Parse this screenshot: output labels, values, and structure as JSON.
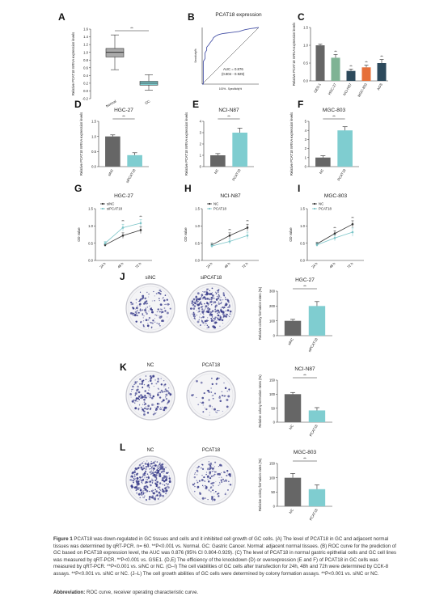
{
  "figure": {
    "caption_label": "Figure 1",
    "caption_text": "PCAT18 was down-regulated in GC tissues and cells and it inhibited cell growth of GC cells. (A) The level of PCAT18 in GC and adjacent normal tissues was determined by qRT-PCR. n= 60. **P<0.001 vs. Normal. GC: Gastric Cancer. Normal: adjacent normal tissues. (B) ROC curve for the prediction of GC based on PCAT18 expression level, the AUC was 0.876 (95% CI 0.804-0.929). (C) The level of PCAT18 in normal gastric epithelial cells and GC cell lines was measured by qRT-PCR. **P<0.001 vs. GSE1. (D,E) The efficiency of the knockdown (D) or overexpression (E and F) of PCAT18 in GC cells was measured by qRT-PCR. **P<0.001 vs. siNC or NC. (G–I) The cell viabilities of GC cells after transfection for 24h, 48h and 72h were determined by CCK-8 assays. **P<0.001 vs. siNC or NC. (J–L) The cell growth abilities of GC cells were determined by colony formation assays. **P<0.001 vs. siNC or NC.",
    "abbreviation_label": "Abbreviation:",
    "abbreviation_text": "ROC curve, receiver operating characteristic curve."
  },
  "colors": {
    "normal": "#aaaaaa",
    "gc": "#7fcdd0",
    "dark": "#666666",
    "green": "#6a9e80",
    "navy": "#2d4a5c",
    "orange": "#e6703a",
    "sinc_line": "#333333",
    "sipcat_line": "#7bc5c8",
    "roc": "#4a55a8",
    "colony": "#3c3f8c"
  },
  "chart_data": [
    {
      "panel": "A",
      "type": "box",
      "ylabel": "Relative PCAT18 mRNA expression levels",
      "yticks": [
        "1.6",
        "1.4",
        "1.2",
        "1.0",
        "0.8",
        "0.6",
        "0.4",
        "0.2",
        "0.0",
        "-0.2"
      ],
      "ylim": [
        -0.2,
        1.6
      ],
      "categories": [
        "Normal",
        "GC"
      ],
      "boxes": [
        {
          "name": "Normal",
          "min": 0.55,
          "q1": 0.88,
          "median": 1.0,
          "q3": 1.1,
          "max": 1.45
        },
        {
          "name": "GC",
          "min": 0.02,
          "q1": 0.15,
          "median": 0.2,
          "q3": 0.25,
          "max": 0.42
        }
      ],
      "sig": "**"
    },
    {
      "panel": "B",
      "type": "line",
      "title": "PCAT18 expression",
      "xlabel": "100% - Specificity%",
      "ylabel": "Sensitivity%",
      "annotation": [
        "AUC = 0.876",
        "(0.804 - 0.929)"
      ],
      "x": [
        0,
        2,
        2,
        5,
        5,
        8,
        8,
        12,
        14,
        18,
        20,
        24,
        28,
        35,
        42,
        50,
        58,
        65,
        75,
        85,
        100
      ],
      "y": [
        0,
        0,
        40,
        45,
        55,
        60,
        65,
        70,
        73,
        78,
        82,
        85,
        87,
        89,
        90,
        91,
        92,
        93,
        96,
        98,
        100
      ]
    },
    {
      "panel": "C",
      "type": "bar",
      "ylabel": "Relative PCAT18 mRNA expression levels",
      "yticks": [
        "1.5",
        "1.0",
        "0.5",
        "0.0"
      ],
      "ylim": [
        0,
        1.5
      ],
      "categories": [
        "GES-1",
        "HGC-27",
        "NCI-N87",
        "MGC-803",
        "AGS"
      ],
      "values": [
        1.0,
        0.65,
        0.28,
        0.38,
        0.5
      ],
      "errors": [
        0.03,
        0.09,
        0.05,
        0.06,
        0.1
      ],
      "sig": [
        "",
        "**",
        "**",
        "**",
        "**"
      ]
    },
    {
      "panel": "D",
      "type": "bar",
      "title": "HGC-27",
      "ylabel": "Relative PCAT18 mRNA expression levels",
      "yticks": [
        "1.5",
        "1.0",
        "0.5",
        "0.0"
      ],
      "ylim": [
        0,
        1.5
      ],
      "categories": [
        "siNC",
        "siPCAT18"
      ],
      "values": [
        1.0,
        0.38
      ],
      "errors": [
        0.05,
        0.08
      ],
      "sig": "**"
    },
    {
      "panel": "E",
      "type": "bar",
      "title": "NCI-N87",
      "ylabel": "Relative PCAT18 mRNA expression levels",
      "yticks": [
        "4",
        "3",
        "2",
        "1",
        "0"
      ],
      "ylim": [
        0,
        4
      ],
      "categories": [
        "NC",
        "PCAT18"
      ],
      "values": [
        1.0,
        3.0
      ],
      "errors": [
        0.15,
        0.4
      ],
      "sig": "**"
    },
    {
      "panel": "F",
      "type": "bar",
      "title": "MGC-803",
      "ylabel": "Relative PCAT18 mRNA expression levels",
      "yticks": [
        "5",
        "4",
        "3",
        "2",
        "1",
        "0"
      ],
      "ylim": [
        0,
        5
      ],
      "categories": [
        "NC",
        "PCAT18"
      ],
      "values": [
        1.0,
        4.0
      ],
      "errors": [
        0.2,
        0.4
      ],
      "sig": "**"
    },
    {
      "panel": "G",
      "type": "line",
      "title": "HGC-27",
      "ylabel": "OD value",
      "yticks": [
        "1.5",
        "1.0",
        "0.5",
        "0.0"
      ],
      "ylim": [
        0,
        1.5
      ],
      "categories": [
        "24 h",
        "48 h",
        "72 h"
      ],
      "series": [
        {
          "name": "siNC",
          "values": [
            0.45,
            0.72,
            0.88
          ],
          "errors": [
            0.05,
            0.08,
            0.1
          ]
        },
        {
          "name": "siPCAT18",
          "values": [
            0.5,
            0.95,
            1.08
          ],
          "errors": [
            0.05,
            0.1,
            0.1
          ]
        }
      ],
      "sig": [
        "",
        "**",
        "**"
      ]
    },
    {
      "panel": "H",
      "type": "line",
      "title": "NCI-N87",
      "ylabel": "OD value",
      "yticks": [
        "1.5",
        "1.0",
        "0.5",
        "0.0"
      ],
      "ylim": [
        0,
        1.5
      ],
      "categories": [
        "24 h",
        "48 h",
        "72 h"
      ],
      "series": [
        {
          "name": "NC",
          "values": [
            0.45,
            0.72,
            0.95
          ],
          "errors": [
            0.05,
            0.08,
            0.1
          ]
        },
        {
          "name": "PCAT18",
          "values": [
            0.42,
            0.55,
            0.72
          ],
          "errors": [
            0.05,
            0.08,
            0.1
          ]
        }
      ],
      "sig": [
        "",
        "**",
        "**"
      ]
    },
    {
      "panel": "I",
      "type": "line",
      "title": "MGC-803",
      "ylabel": "OD value",
      "yticks": [
        "1.5",
        "1.0",
        "0.5",
        "0.0"
      ],
      "ylim": [
        0,
        1.5
      ],
      "categories": [
        "24 h",
        "48 h",
        "72 h"
      ],
      "series": [
        {
          "name": "NC",
          "values": [
            0.48,
            0.78,
            1.05
          ],
          "errors": [
            0.05,
            0.08,
            0.1
          ]
        },
        {
          "name": "PCAT18",
          "values": [
            0.45,
            0.65,
            0.82
          ],
          "errors": [
            0.05,
            0.08,
            0.12
          ]
        }
      ],
      "sig": [
        "",
        "**",
        "**"
      ]
    },
    {
      "panel": "J",
      "type": "bar",
      "title": "HGC-27",
      "ylabel": "Relative colony formation rates (%)",
      "yticks": [
        "300",
        "200",
        "100",
        "0"
      ],
      "ylim": [
        0,
        300
      ],
      "categories": [
        "siNC",
        "siPCAT18"
      ],
      "values": [
        100,
        200
      ],
      "errors": [
        10,
        30
      ],
      "sig": "**",
      "images": [
        "siNC",
        "siPCAT18"
      ]
    },
    {
      "panel": "K",
      "type": "bar",
      "title": "NCI-N87",
      "ylabel": "Relative colony formation rates (%)",
      "yticks": [
        "150",
        "100",
        "50",
        "0"
      ],
      "ylim": [
        0,
        150
      ],
      "categories": [
        "NC",
        "PCAT18"
      ],
      "values": [
        100,
        42
      ],
      "errors": [
        6,
        10
      ],
      "sig": "**",
      "images": [
        "NC",
        "PCAT18"
      ]
    },
    {
      "panel": "L",
      "type": "bar",
      "title": "MGC-803",
      "ylabel": "Relative colony formation rates (%)",
      "yticks": [
        "150",
        "100",
        "50",
        "0"
      ],
      "ylim": [
        0,
        150
      ],
      "categories": [
        "NC",
        "PCAT18"
      ],
      "values": [
        100,
        60
      ],
      "errors": [
        15,
        15
      ],
      "sig": "**",
      "images": [
        "NC",
        "PCAT18"
      ]
    }
  ]
}
